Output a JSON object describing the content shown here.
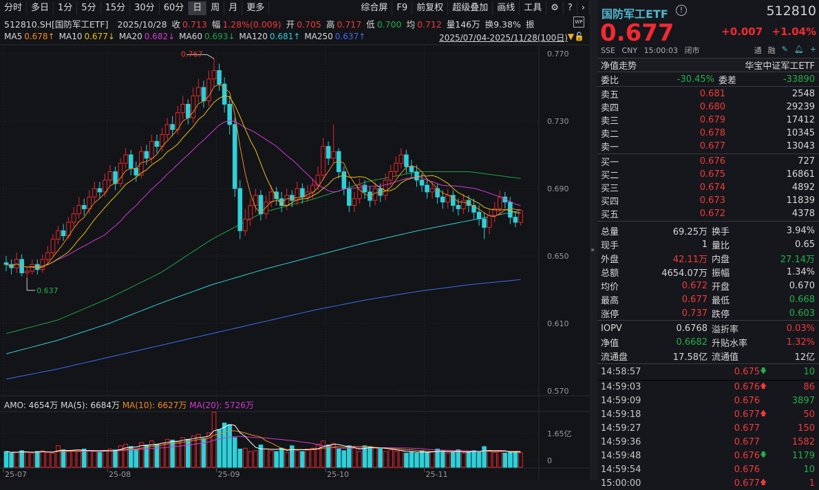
{
  "toolbar": {
    "left": [
      "分时",
      "多日",
      "1分",
      "5分",
      "15分",
      "30分",
      "60分",
      "日",
      "周",
      "月",
      "更多"
    ],
    "active": "日",
    "right": [
      "综合屏",
      "F9",
      "前复权",
      "超级叠加",
      "画线",
      "工具"
    ]
  },
  "info": {
    "symbol": "512810.SH[国防军工ETF]",
    "date": "2025/10/28",
    "close_label": "收",
    "close": "0.713",
    "chg_label": "幅",
    "chg": "1.28%(0.009)",
    "open_label": "开",
    "open": "0.705",
    "high_label": "高",
    "high": "0.717",
    "low_label": "低",
    "low": "0.700",
    "avg_label": "均",
    "avg": "0.712",
    "vol": "量146万",
    "turnover": "换9.38%",
    "amp_label": "振"
  },
  "ma": [
    {
      "label": "MA5",
      "value": "0.678↑",
      "color": "#f08c1e"
    },
    {
      "label": "MA10",
      "value": "0.677↓",
      "color": "#e8c21a"
    },
    {
      "label": "MA20",
      "value": "0.682↓",
      "color": "#d33ad3"
    },
    {
      "label": "MA60",
      "value": "0.693↓",
      "color": "#1fa34a"
    },
    {
      "label": "MA120",
      "value": "0.681↑",
      "color": "#2fd0d8"
    },
    {
      "label": "MA250",
      "value": "0.637↑",
      "color": "#3d6cf0"
    }
  ],
  "range": "2025/07/04-2025/11/28(100日)",
  "wp_badge": "WP",
  "volume_header": {
    "amo": "AMO: 4654万",
    "ma5": "MA(5): 6684万",
    "ma10": "MA(10): 6627万",
    "ma20": "MA(20): 5726万"
  },
  "chart_data": {
    "type": "candlestick",
    "price_ticks": [
      "0.770",
      "0.730",
      "0.690",
      "0.650",
      "0.610",
      "0.570"
    ],
    "ylim": [
      0.57,
      0.77
    ],
    "x_ticks": [
      {
        "label": "25-07",
        "day": 0
      },
      {
        "label": "25-08",
        "day": 20
      },
      {
        "label": "25-09",
        "day": 41
      },
      {
        "label": "25-10",
        "day": 62
      },
      {
        "label": "25-11",
        "day": 81
      }
    ],
    "annotations": [
      {
        "text": "0.767",
        "day": 40,
        "value": 0.767,
        "kind": "high"
      },
      {
        "text": "0.637",
        "day": 4,
        "value": 0.637,
        "kind": "low"
      }
    ],
    "open": [
      0.646,
      0.645,
      0.643,
      0.648,
      0.64,
      0.641,
      0.645,
      0.642,
      0.648,
      0.652,
      0.66,
      0.665,
      0.662,
      0.67,
      0.675,
      0.68,
      0.678,
      0.685,
      0.69,
      0.688,
      0.695,
      0.7,
      0.693,
      0.705,
      0.71,
      0.702,
      0.698,
      0.712,
      0.708,
      0.718,
      0.715,
      0.722,
      0.728,
      0.725,
      0.735,
      0.74,
      0.732,
      0.745,
      0.75,
      0.742,
      0.755,
      0.76,
      0.752,
      0.74,
      0.728,
      0.69,
      0.665,
      0.672,
      0.68,
      0.686,
      0.675,
      0.682,
      0.688,
      0.684,
      0.68,
      0.686,
      0.683,
      0.69,
      0.685,
      0.688,
      0.692,
      0.698,
      0.715,
      0.708,
      0.712,
      0.7,
      0.69,
      0.68,
      0.684,
      0.692,
      0.688,
      0.683,
      0.69,
      0.686,
      0.695,
      0.7,
      0.705,
      0.71,
      0.703,
      0.7,
      0.695,
      0.692,
      0.688,
      0.69,
      0.685,
      0.682,
      0.686,
      0.68,
      0.678,
      0.683,
      0.68,
      0.676,
      0.672,
      0.667,
      0.674,
      0.678,
      0.685,
      0.682,
      0.673,
      0.67
    ],
    "high": [
      0.65,
      0.648,
      0.652,
      0.651,
      0.644,
      0.648,
      0.648,
      0.651,
      0.656,
      0.663,
      0.668,
      0.669,
      0.673,
      0.679,
      0.685,
      0.684,
      0.689,
      0.694,
      0.694,
      0.699,
      0.704,
      0.703,
      0.708,
      0.714,
      0.713,
      0.706,
      0.715,
      0.716,
      0.722,
      0.722,
      0.726,
      0.732,
      0.733,
      0.739,
      0.745,
      0.743,
      0.75,
      0.755,
      0.754,
      0.76,
      0.767,
      0.764,
      0.756,
      0.745,
      0.732,
      0.695,
      0.678,
      0.684,
      0.69,
      0.689,
      0.686,
      0.692,
      0.691,
      0.688,
      0.69,
      0.689,
      0.694,
      0.693,
      0.692,
      0.696,
      0.703,
      0.72,
      0.718,
      0.728,
      0.714,
      0.703,
      0.694,
      0.688,
      0.696,
      0.695,
      0.691,
      0.694,
      0.693,
      0.699,
      0.704,
      0.709,
      0.714,
      0.713,
      0.707,
      0.704,
      0.699,
      0.696,
      0.694,
      0.693,
      0.689,
      0.69,
      0.689,
      0.684,
      0.687,
      0.686,
      0.684,
      0.68,
      0.676,
      0.678,
      0.682,
      0.689,
      0.688,
      0.685,
      0.676,
      0.677
    ],
    "low": [
      0.641,
      0.639,
      0.64,
      0.638,
      0.637,
      0.639,
      0.639,
      0.64,
      0.645,
      0.65,
      0.657,
      0.659,
      0.66,
      0.667,
      0.672,
      0.674,
      0.675,
      0.682,
      0.684,
      0.685,
      0.692,
      0.689,
      0.691,
      0.702,
      0.698,
      0.694,
      0.696,
      0.704,
      0.705,
      0.711,
      0.712,
      0.719,
      0.721,
      0.722,
      0.731,
      0.728,
      0.729,
      0.741,
      0.738,
      0.739,
      0.75,
      0.748,
      0.735,
      0.722,
      0.685,
      0.66,
      0.662,
      0.668,
      0.676,
      0.671,
      0.672,
      0.679,
      0.68,
      0.676,
      0.677,
      0.679,
      0.68,
      0.681,
      0.682,
      0.684,
      0.689,
      0.695,
      0.704,
      0.705,
      0.696,
      0.686,
      0.676,
      0.676,
      0.681,
      0.684,
      0.679,
      0.68,
      0.682,
      0.683,
      0.692,
      0.697,
      0.702,
      0.699,
      0.696,
      0.691,
      0.688,
      0.684,
      0.684,
      0.681,
      0.678,
      0.678,
      0.676,
      0.674,
      0.675,
      0.676,
      0.672,
      0.668,
      0.66,
      0.663,
      0.67,
      0.674,
      0.678,
      0.669,
      0.667,
      0.668
    ],
    "close": [
      0.645,
      0.643,
      0.648,
      0.64,
      0.641,
      0.645,
      0.642,
      0.648,
      0.652,
      0.66,
      0.665,
      0.662,
      0.67,
      0.675,
      0.68,
      0.678,
      0.685,
      0.69,
      0.688,
      0.695,
      0.7,
      0.693,
      0.705,
      0.71,
      0.702,
      0.698,
      0.712,
      0.708,
      0.718,
      0.715,
      0.722,
      0.728,
      0.725,
      0.735,
      0.74,
      0.732,
      0.745,
      0.75,
      0.742,
      0.755,
      0.76,
      0.752,
      0.74,
      0.728,
      0.69,
      0.665,
      0.672,
      0.68,
      0.686,
      0.675,
      0.682,
      0.688,
      0.684,
      0.68,
      0.686,
      0.683,
      0.69,
      0.685,
      0.688,
      0.692,
      0.698,
      0.715,
      0.708,
      0.712,
      0.7,
      0.69,
      0.68,
      0.684,
      0.692,
      0.688,
      0.683,
      0.69,
      0.686,
      0.695,
      0.7,
      0.705,
      0.71,
      0.703,
      0.7,
      0.695,
      0.692,
      0.688,
      0.69,
      0.685,
      0.682,
      0.686,
      0.68,
      0.678,
      0.683,
      0.68,
      0.676,
      0.672,
      0.667,
      0.674,
      0.678,
      0.685,
      0.682,
      0.673,
      0.67,
      0.677
    ],
    "ma60_every10": [
      0.604,
      0.612,
      0.625,
      0.64,
      0.66,
      0.676,
      0.684,
      0.694,
      0.7,
      0.7,
      0.696,
      0.693
    ],
    "ma120_every10": [
      0.592,
      0.6,
      0.61,
      0.622,
      0.633,
      0.642,
      0.65,
      0.658,
      0.665,
      0.671,
      0.677,
      0.681
    ],
    "ma250_every10": [
      0.577,
      0.583,
      0.59,
      0.597,
      0.604,
      0.611,
      0.618,
      0.624,
      0.629,
      0.633,
      0.636,
      0.637
    ],
    "volume_ticks": [
      "1.65亿",
      "0"
    ],
    "volume_max": 3.3,
    "amount_yi": [
      0.55,
      0.45,
      0.5,
      0.6,
      0.5,
      0.45,
      0.55,
      0.6,
      0.5,
      0.45,
      0.9,
      0.65,
      0.55,
      0.6,
      0.55,
      0.7,
      0.6,
      0.55,
      0.5,
      0.6,
      0.7,
      0.65,
      0.9,
      1.0,
      0.85,
      0.7,
      1.1,
      0.95,
      1.2,
      1.0,
      1.05,
      1.3,
      1.25,
      1.2,
      1.4,
      1.3,
      1.5,
      1.6,
      1.35,
      1.7,
      2.96,
      1.9,
      2.3,
      2.2,
      1.4,
      0.7,
      0.75,
      0.55,
      0.6,
      0.95,
      0.7,
      0.6,
      0.55,
      0.75,
      0.5,
      0.9,
      0.6,
      0.55,
      0.7,
      0.75,
      1.0,
      1.2,
      0.95,
      1.05,
      0.7,
      0.6,
      0.9,
      0.75,
      0.55,
      0.9,
      0.85,
      0.8,
      0.7,
      0.55,
      0.65,
      0.55,
      0.6,
      0.45,
      0.5,
      0.45,
      0.6,
      0.5,
      0.55,
      0.7,
      0.55,
      0.45,
      0.5,
      0.65,
      0.45,
      0.55,
      0.6,
      0.5,
      0.85,
      0.55,
      0.5,
      0.6,
      0.45,
      0.5,
      0.55,
      0.47
    ],
    "colors": {
      "up": "#e8262a",
      "down": "#2fd0d8",
      "ma5": "#ffffff",
      "ma10": "#f08c1e",
      "ma20": "#d33ad3"
    }
  },
  "quote": {
    "name": "国防军工ETF",
    "code": "512810",
    "price": "0.677",
    "change": "+0.007",
    "pct": "+1.04%",
    "exchange": "SSE",
    "currency": "CNY",
    "time": "15:00:03",
    "status": "闭市",
    "tags": [
      "通",
      "融"
    ],
    "nav_trend": "净值走势",
    "fund_name": "华宝中证军工ETF",
    "wb_label": "委比",
    "wb": "-30.45%",
    "wc_label": "委差",
    "wc": "-33890"
  },
  "asks": [
    {
      "l": "卖五",
      "p": "0.681",
      "v": "2548"
    },
    {
      "l": "卖四",
      "p": "0.680",
      "v": "29239"
    },
    {
      "l": "卖三",
      "p": "0.679",
      "v": "17412"
    },
    {
      "l": "卖二",
      "p": "0.678",
      "v": "10345"
    },
    {
      "l": "卖一",
      "p": "0.677",
      "v": "13043"
    }
  ],
  "bids": [
    {
      "l": "买一",
      "p": "0.676",
      "v": "727"
    },
    {
      "l": "买二",
      "p": "0.675",
      "v": "16861"
    },
    {
      "l": "买三",
      "p": "0.674",
      "v": "4892"
    },
    {
      "l": "买四",
      "p": "0.673",
      "v": "11839"
    },
    {
      "l": "买五",
      "p": "0.672",
      "v": "4378"
    }
  ],
  "stats": [
    [
      "总量",
      "69.25万",
      "",
      "换手",
      "3.94%",
      ""
    ],
    [
      "现手",
      "1",
      "",
      "量比",
      "0.65",
      ""
    ],
    [
      "外盘",
      "42.11万",
      "red",
      "内盘",
      "27.14万",
      "green"
    ],
    [
      "总额",
      "4654.07万",
      "",
      "振幅",
      "1.34%",
      ""
    ],
    [
      "均价",
      "0.672",
      "red",
      "开盘",
      "0.670",
      ""
    ],
    [
      "最高",
      "0.677",
      "red",
      "最低",
      "0.668",
      "green"
    ],
    [
      "涨停",
      "0.737",
      "red",
      "跌停",
      "0.603",
      "green"
    ]
  ],
  "fund": [
    [
      "IOPV",
      "0.6768",
      "",
      "溢折率",
      "0.03%",
      "red"
    ],
    [
      "净值",
      "0.6682",
      "green",
      "升贴水率",
      "1.32%",
      "red"
    ],
    [
      "流通盘",
      "17.58亿",
      "",
      "流通值",
      "12亿",
      ""
    ]
  ],
  "ticks": [
    [
      "14:58:57",
      "0.675",
      "down",
      "10",
      "green"
    ],
    [
      "14:59:03",
      "0.676",
      "up",
      "86",
      "red"
    ],
    [
      "14:59:09",
      "0.676",
      "",
      "3897",
      "green"
    ],
    [
      "14:59:18",
      "0.677",
      "up",
      "50",
      "red"
    ],
    [
      "14:59:27",
      "0.677",
      "",
      "150",
      "red"
    ],
    [
      "14:59:36",
      "0.677",
      "",
      "1582",
      "red"
    ],
    [
      "14:59:48",
      "0.676",
      "down",
      "1179",
      "green"
    ],
    [
      "14:59:54",
      "0.676",
      "",
      "10",
      "green"
    ],
    [
      "15:00:00",
      "0.677",
      "up",
      "1",
      "red"
    ]
  ]
}
